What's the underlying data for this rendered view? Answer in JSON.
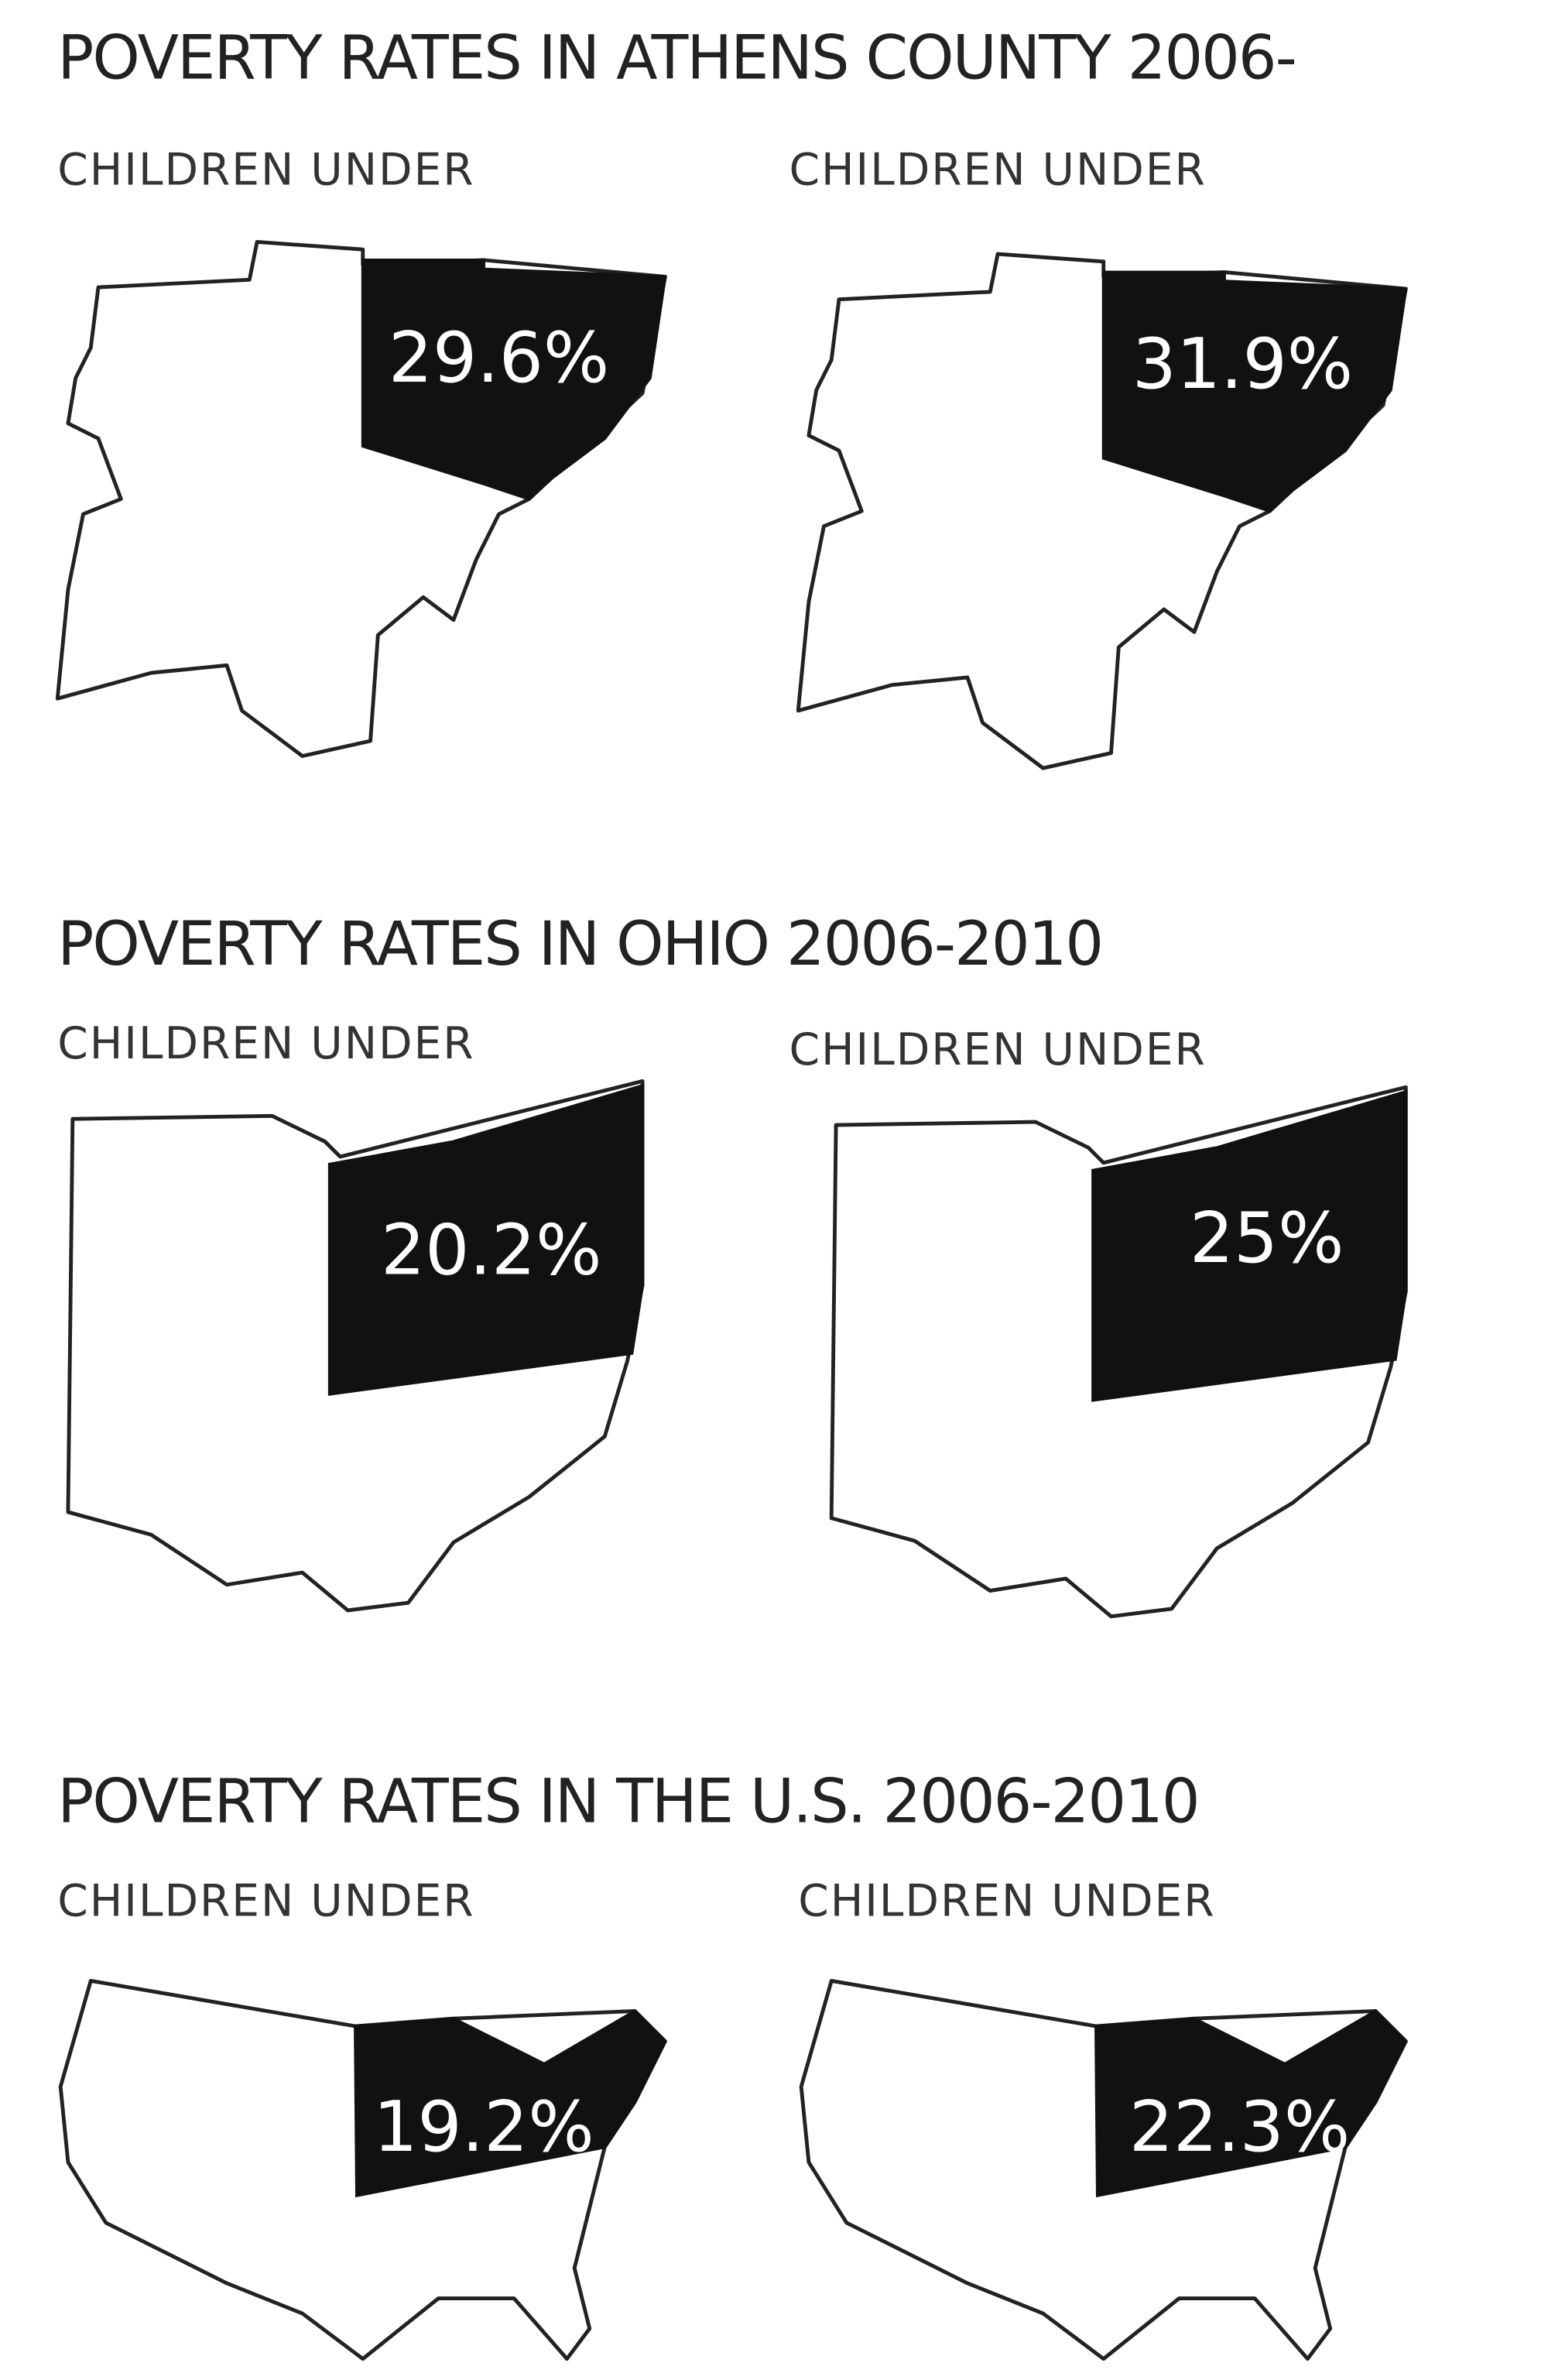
{
  "sections": [
    {
      "title": "POVERTY RATES IN ATHENS COUNTY 2006-",
      "panels": [
        {
          "label": "CHILDREN UNDER",
          "value": "29.6%"
        },
        {
          "label": "CHILDREN UNDER",
          "value": "31.9%"
        }
      ]
    },
    {
      "title": "POVERTY RATES IN OHIO 2006-2010",
      "panels": [
        {
          "label": "CHILDREN UNDER",
          "value": "20.2%"
        },
        {
          "label": "CHILDREN UNDER",
          "value": "25%"
        }
      ]
    },
    {
      "title": "POVERTY RATES IN THE U.S. 2006-2010",
      "panels": [
        {
          "label": "CHILDREN UNDER",
          "value": "19.2%"
        },
        {
          "label": "CHILDREN UNDER",
          "value": "22.3%"
        }
      ]
    }
  ]
}
